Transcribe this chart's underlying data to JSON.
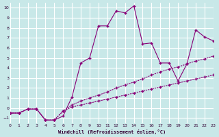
{
  "xlabel": "Windchill (Refroidissement éolien,°C)",
  "bg_color": "#c8e8e8",
  "grid_color": "#ffffff",
  "line_color": "#880077",
  "xlim": [
    0,
    23
  ],
  "ylim": [
    -1.5,
    10.5
  ],
  "xticks": [
    0,
    1,
    2,
    3,
    4,
    5,
    6,
    7,
    8,
    9,
    10,
    11,
    12,
    13,
    14,
    15,
    16,
    17,
    18,
    19,
    20,
    21,
    22,
    23
  ],
  "yticks": [
    -1,
    0,
    1,
    2,
    3,
    4,
    5,
    6,
    7,
    8,
    9,
    10
  ],
  "line1_x": [
    0,
    1,
    2,
    3,
    4,
    5,
    6,
    7,
    8,
    9,
    10,
    11,
    12,
    13,
    14,
    15,
    16,
    17,
    18,
    19,
    20,
    21,
    22,
    23
  ],
  "line1_y": [
    -0.5,
    -0.5,
    -0.1,
    -0.1,
    -1.2,
    -1.2,
    -0.8,
    1.1,
    4.5,
    5.0,
    8.2,
    8.2,
    9.7,
    9.5,
    10.2,
    6.4,
    6.5,
    4.5,
    4.5,
    2.7,
    4.4,
    7.8,
    7.1,
    6.7
  ],
  "line2_x": [
    0,
    1,
    2,
    3,
    4,
    5,
    6,
    7,
    8,
    9,
    10,
    11,
    12,
    13,
    14,
    15,
    16,
    17,
    18,
    19,
    20,
    21,
    22,
    23
  ],
  "line2_y": [
    -0.5,
    -0.5,
    -0.1,
    -0.1,
    -1.2,
    -1.2,
    -0.3,
    0.3,
    0.7,
    1.0,
    1.3,
    1.6,
    2.0,
    2.3,
    2.6,
    2.9,
    3.3,
    3.6,
    3.9,
    4.1,
    4.4,
    4.7,
    4.9,
    5.2
  ],
  "line3_x": [
    0,
    1,
    2,
    3,
    4,
    5,
    6,
    7,
    8,
    9,
    10,
    11,
    12,
    13,
    14,
    15,
    16,
    17,
    18,
    19,
    20,
    21,
    22,
    23
  ],
  "line3_y": [
    -0.5,
    -0.5,
    -0.1,
    -0.1,
    -1.2,
    -1.2,
    -0.3,
    0.1,
    0.3,
    0.5,
    0.7,
    0.9,
    1.1,
    1.3,
    1.5,
    1.7,
    1.9,
    2.1,
    2.3,
    2.5,
    2.7,
    2.9,
    3.1,
    3.3
  ]
}
